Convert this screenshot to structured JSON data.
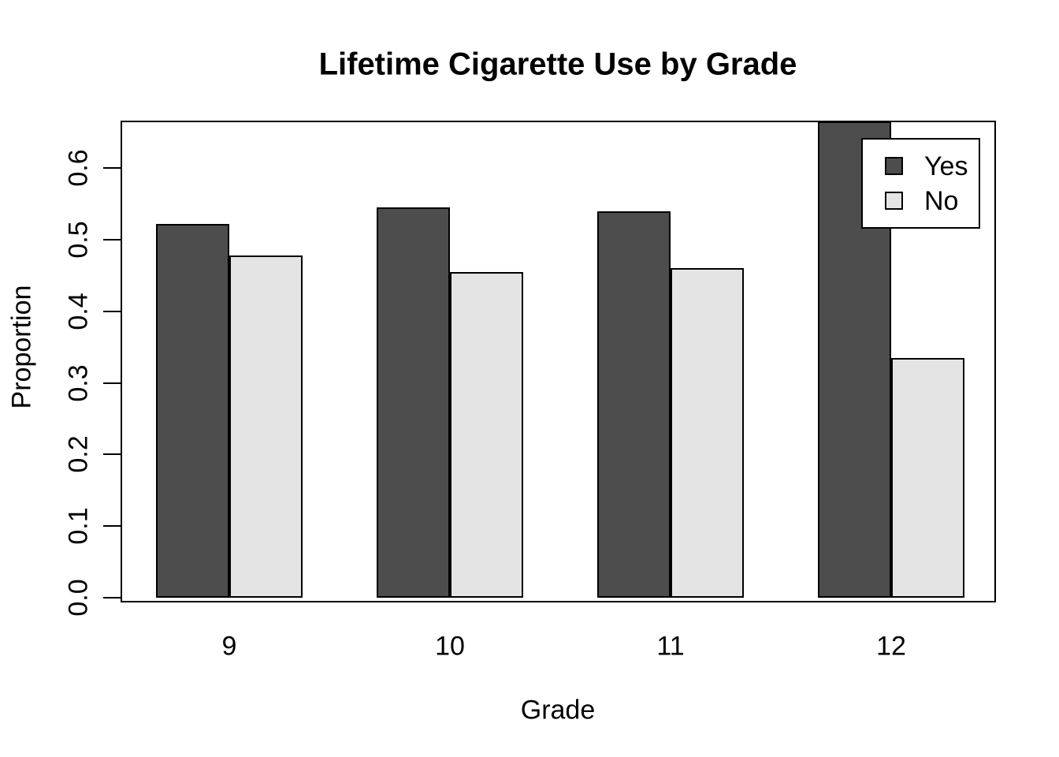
{
  "chart_data": {
    "type": "bar",
    "title": "Lifetime Cigarette Use by Grade",
    "xlabel": "Grade",
    "ylabel": "Proportion",
    "categories": [
      "9",
      "10",
      "11",
      "12"
    ],
    "series": [
      {
        "name": "Yes",
        "color": "#4d4d4d",
        "values": [
          0.522,
          0.545,
          0.54,
          0.665
        ]
      },
      {
        "name": "No",
        "color": "#e4e4e4",
        "values": [
          0.478,
          0.455,
          0.46,
          0.335
        ]
      }
    ],
    "ylim": [
      0,
      0.665
    ],
    "yticks": [
      "0.0",
      "0.1",
      "0.2",
      "0.3",
      "0.4",
      "0.5",
      "0.6"
    ],
    "legend": {
      "position": "top-right",
      "entries": [
        "Yes",
        "No"
      ]
    },
    "grid": false,
    "bar_border_color": "#000000",
    "background_color": "#ffffff"
  }
}
